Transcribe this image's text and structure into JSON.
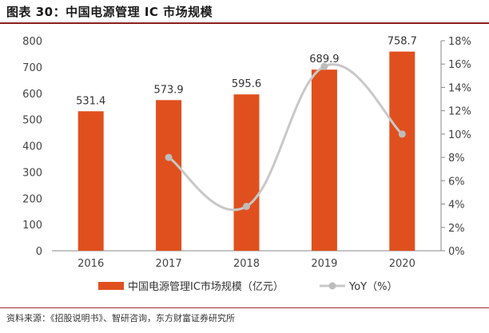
{
  "title": "图表 30：中国电源管理 IC 市场规模",
  "source": "资料来源：《招股说明书》、智研咨询，东方财富证券研究所",
  "chart_data": {
    "type": "bar+line",
    "categories": [
      "2016",
      "2017",
      "2018",
      "2019",
      "2020"
    ],
    "series": [
      {
        "name": "中国电源管理IC市场规模（亿元）",
        "type": "bar",
        "axis": "left",
        "values": [
          531.4,
          573.9,
          595.6,
          689.9,
          758.7
        ],
        "labels": [
          "531.4",
          "573.9",
          "595.6",
          "689.9",
          "758.7"
        ],
        "color": "#E0501E"
      },
      {
        "name": "YoY（%）",
        "type": "line",
        "axis": "right",
        "x": [
          "2017",
          "2018",
          "2019",
          "2020"
        ],
        "values": [
          8.0,
          3.8,
          15.8,
          10.0
        ],
        "color": "#C8C8C8"
      }
    ],
    "y_left": {
      "min": 0,
      "max": 800,
      "ticks": [
        0,
        100,
        200,
        300,
        400,
        500,
        600,
        700,
        800
      ]
    },
    "y_right": {
      "min": 0,
      "max": 18,
      "ticks": [
        "0%",
        "2%",
        "4%",
        "6%",
        "8%",
        "10%",
        "12%",
        "14%",
        "16%",
        "18%"
      ]
    },
    "grid": false,
    "legend_position": "bottom"
  }
}
